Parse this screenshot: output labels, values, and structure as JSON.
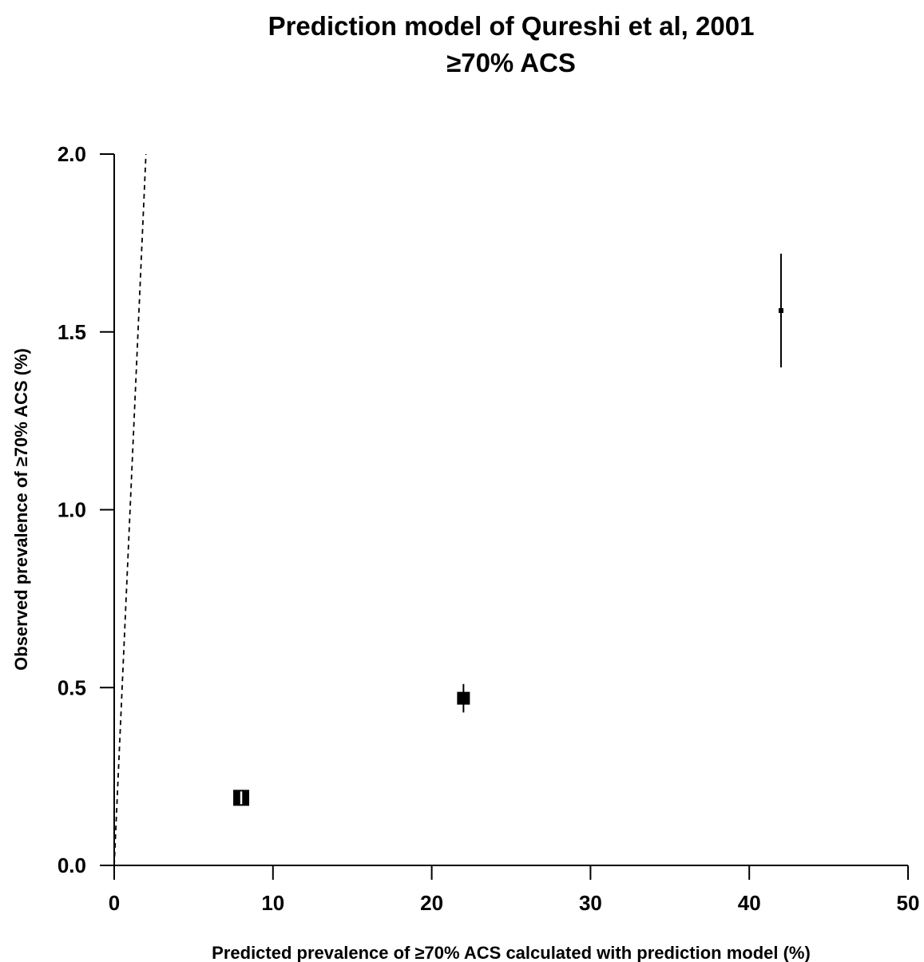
{
  "chart_data": {
    "type": "scatter",
    "title": "Prediction model of Qureshi et al, 2001",
    "subtitle": "≥70% ACS",
    "xlabel": "Predicted prevalence of  ≥70% ACS calculated with prediction model (%)",
    "ylabel": "Observed prevalence of  ≥70% ACS (%)",
    "xlim": [
      0,
      50
    ],
    "ylim": [
      0,
      2
    ],
    "x_ticks": [
      "0",
      "10",
      "20",
      "30",
      "40",
      "50"
    ],
    "y_ticks": [
      "0.0",
      "0.5",
      "1.0",
      "1.5",
      "2.0"
    ],
    "grid": false,
    "reference_line": {
      "style": "dashed",
      "description": "identity line y = x"
    },
    "points": [
      {
        "x": 8.0,
        "y": 0.19,
        "y_lower": 0.17,
        "y_upper": 0.21,
        "marker_size": "large"
      },
      {
        "x": 22.0,
        "y": 0.47,
        "y_lower": 0.43,
        "y_upper": 0.51,
        "marker_size": "medium"
      },
      {
        "x": 42.0,
        "y": 1.56,
        "y_lower": 1.4,
        "y_upper": 1.72,
        "marker_size": "small"
      }
    ],
    "colors": {
      "points": "#000000",
      "axes": "#000000"
    }
  }
}
